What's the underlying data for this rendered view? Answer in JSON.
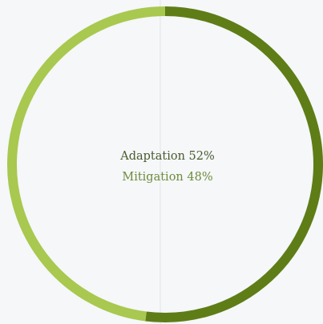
{
  "chart_data": {
    "type": "donut",
    "categories": [
      "Adaptation",
      "Mitigation"
    ],
    "values": [
      52,
      48
    ],
    "value_labels": [
      "52%",
      "48%"
    ],
    "colors": [
      "#5e7d17",
      "#a9c84f"
    ],
    "label_colors": [
      "#4b5a2c",
      "#6e8a3b"
    ]
  }
}
